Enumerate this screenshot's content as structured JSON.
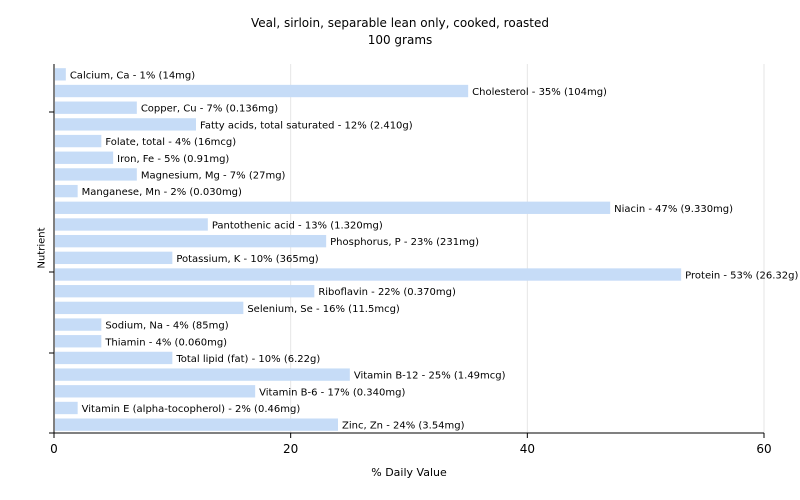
{
  "chart_data": {
    "type": "bar",
    "orientation": "horizontal",
    "title": "Veal, sirloin, separable lean only, cooked, roasted",
    "subtitle": "100 grams",
    "xlabel": "% Daily Value",
    "ylabel": "Nutrient",
    "xlim": [
      0,
      60
    ],
    "xticks": [
      "0",
      "20",
      "40",
      "60"
    ],
    "grid": true,
    "bar_color": "#c6dcf7",
    "categories": [
      "Calcium, Ca",
      "Cholesterol",
      "Copper, Cu",
      "Fatty acids, total saturated",
      "Folate, total",
      "Iron, Fe",
      "Magnesium, Mg",
      "Manganese, Mn",
      "Niacin",
      "Pantothenic acid",
      "Phosphorus, P",
      "Potassium, K",
      "Protein",
      "Riboflavin",
      "Selenium, Se",
      "Sodium, Na",
      "Thiamin",
      "Total lipid (fat)",
      "Vitamin B-12",
      "Vitamin B-6",
      "Vitamin E (alpha-tocopherol)",
      "Zinc, Zn"
    ],
    "values": [
      1,
      35,
      7,
      12,
      4,
      5,
      7,
      2,
      47,
      13,
      23,
      10,
      53,
      22,
      16,
      4,
      4,
      10,
      25,
      17,
      2,
      24
    ],
    "labels": [
      "Calcium, Ca - 1% (14mg)",
      "Cholesterol - 35% (104mg)",
      "Copper, Cu - 7% (0.136mg)",
      "Fatty acids, total saturated - 12% (2.410g)",
      "Folate, total - 4% (16mcg)",
      "Iron, Fe - 5% (0.91mg)",
      "Magnesium, Mg - 7% (27mg)",
      "Manganese, Mn - 2% (0.030mg)",
      "Niacin - 47% (9.330mg)",
      "Pantothenic acid - 13% (1.320mg)",
      "Phosphorus, P - 23% (231mg)",
      "Potassium, K - 10% (365mg)",
      "Protein - 53% (26.32g)",
      "Riboflavin - 22% (0.370mg)",
      "Selenium, Se - 16% (11.5mcg)",
      "Sodium, Na - 4% (85mg)",
      "Thiamin - 4% (0.060mg)",
      "Total lipid (fat) - 10% (6.22g)",
      "Vitamin B-12 - 25% (1.49mcg)",
      "Vitamin B-6 - 17% (0.340mg)",
      "Vitamin E (alpha-tocopherol) - 2% (0.46mg)",
      "Zinc, Zn - 24% (3.54mg)"
    ]
  }
}
